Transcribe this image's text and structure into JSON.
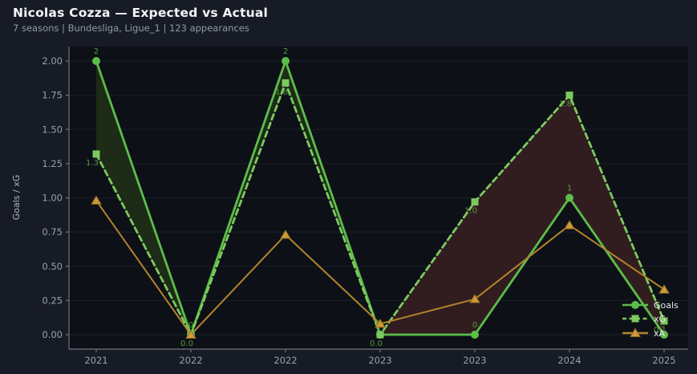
{
  "header": {
    "title": "Nicolas Cozza — Expected vs Actual",
    "subtitle": "7 seasons | Bundesliga, Ligue_1 | 123 appearances"
  },
  "chart_data": {
    "type": "line",
    "title": "Nicolas Cozza — Expected vs Actual",
    "subtitle": "7 seasons | Bundesliga, Ligue_1 | 123 appearances",
    "categories": [
      "2021",
      "2022",
      "2022",
      "2023",
      "2023",
      "2024",
      "2025"
    ],
    "series": [
      {
        "name": "Goals",
        "values": [
          2,
          0,
          2,
          0,
          0,
          1,
          0
        ],
        "point_labels": [
          "2",
          "0",
          "2",
          "0",
          "0",
          "1",
          null
        ],
        "marker": "circle",
        "line_style": "solid"
      },
      {
        "name": "xG",
        "values": [
          1.32,
          0.0,
          1.84,
          0.0,
          0.97,
          1.75,
          0.1
        ],
        "point_labels": [
          "1.3",
          "0.0",
          "1.8",
          "0.0",
          "1.0",
          "1.8",
          "0.1"
        ],
        "marker": "square",
        "line_style": "dashed"
      },
      {
        "name": "xA",
        "values": [
          0.98,
          0.0,
          0.73,
          0.08,
          0.26,
          0.8,
          0.33
        ],
        "point_labels": [
          null,
          null,
          null,
          null,
          null,
          null,
          null
        ],
        "marker": "triangle",
        "line_style": "solid"
      }
    ],
    "xlabel": "",
    "ylabel": "Goals / xG",
    "yticks": [
      "0.00",
      "0.25",
      "0.50",
      "0.75",
      "1.00",
      "1.25",
      "1.50",
      "1.75",
      "2.00"
    ],
    "ylim": [
      -0.106,
      2.106
    ],
    "grid": "horizontal",
    "legend": {
      "position": "lower-right",
      "entries": [
        "Goals",
        "xG",
        "xA"
      ]
    },
    "fill_between": "Goals vs xG: green where Goals > xG, red where xG > Goals"
  },
  "colors": {
    "background": "#171b25",
    "plot_background": "#0d1017",
    "grid": "#1a2029",
    "spine": "#6e747e",
    "tick_label": "#99a0ab",
    "axis_label": "#b0b5bf",
    "title": "#f2f4f7",
    "subtitle": "#9299a4",
    "legend_text": "#e6e8ec",
    "goals_line": "#5cbd4a",
    "goals_label": "#4f9e3d",
    "xg_line": "#7cc95e",
    "xg_label": "#58963f",
    "xa_line": "#b4842a",
    "xa_marker": "#d09a38",
    "xa_marker_edge": "#8a6a20",
    "fill_positive": "#1d2b17",
    "fill_negative": "#311d20"
  }
}
